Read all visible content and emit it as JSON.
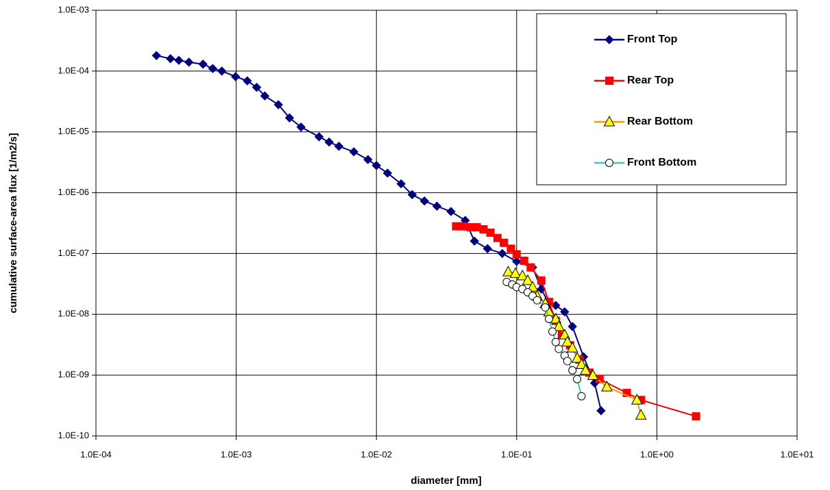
{
  "chart_data": {
    "type": "line",
    "xlabel": "diameter [mm]",
    "ylabel": "cumulative surface-area flux [1/m2/s]",
    "xscale": "log",
    "yscale": "log",
    "grid": true,
    "legend": "upper right",
    "xlim": [
      0.0001,
      10
    ],
    "xticks": [
      {
        "value": 0.0001,
        "label": "1.0E-04"
      },
      {
        "value": 0.001,
        "label": "1.0E-03"
      },
      {
        "value": 0.01,
        "label": "1.0E-02"
      },
      {
        "value": 0.1,
        "label": "1.0E-01"
      },
      {
        "value": 1,
        "label": "1.0E+00"
      },
      {
        "value": 10,
        "label": "1.0E+01"
      }
    ],
    "ylim": [
      1e-10,
      0.001
    ],
    "yticks": [
      {
        "value": 1e-10,
        "label": "1.0E-10"
      },
      {
        "value": 1e-09,
        "label": "1.0E-09"
      },
      {
        "value": 1e-08,
        "label": "1.0E-08"
      },
      {
        "value": 1e-07,
        "label": "1.0E-07"
      },
      {
        "value": 1e-06,
        "label": "1.0E-06"
      },
      {
        "value": 1e-05,
        "label": "1.0E-05"
      },
      {
        "value": 0.0001,
        "label": "1.0E-04"
      },
      {
        "value": 0.001,
        "label": "1.0E-03"
      }
    ],
    "series": [
      {
        "name": "Front Top",
        "color": "#000080",
        "marker": "diamond",
        "marker_color": "#000080",
        "x": [
          0.00027,
          0.00034,
          0.00039,
          0.00046,
          0.00058,
          0.00068,
          0.00079,
          0.00099,
          0.0012,
          0.0014,
          0.0016,
          0.002,
          0.0024,
          0.0029,
          0.0039,
          0.0046,
          0.0054,
          0.0069,
          0.0087,
          0.01,
          0.012,
          0.015,
          0.018,
          0.022,
          0.027,
          0.034,
          0.043,
          0.05,
          0.062,
          0.079,
          0.1,
          0.13,
          0.15,
          0.17,
          0.19,
          0.22,
          0.25,
          0.3,
          0.36,
          0.4
        ],
        "values": [
          0.00018,
          0.00016,
          0.00015,
          0.00014,
          0.00013,
          0.00011,
          0.0001,
          8.1e-05,
          6.9e-05,
          5.4e-05,
          3.9e-05,
          2.8e-05,
          1.7e-05,
          1.2e-05,
          8.3e-06,
          6.8e-06,
          5.8e-06,
          4.7e-06,
          3.5e-06,
          2.8e-06,
          2.1e-06,
          1.4e-06,
          9.3e-07,
          7.3e-07,
          6e-07,
          4.9e-07,
          3.5e-07,
          1.6e-07,
          1.2e-07,
          1e-07,
          7.4e-08,
          5.9e-08,
          2.6e-08,
          1.5e-08,
          1.4e-08,
          1.1e-08,
          6.3e-09,
          2e-09,
          7.4e-10,
          2.6e-10
        ]
      },
      {
        "name": "Rear Top",
        "color": "#ff0000",
        "marker": "square",
        "marker_color": "#ff0000",
        "x": [
          0.037,
          0.042,
          0.047,
          0.052,
          0.058,
          0.065,
          0.073,
          0.081,
          0.091,
          0.1,
          0.113,
          0.126,
          0.15,
          0.17,
          0.19,
          0.21,
          0.24,
          0.28,
          0.33,
          0.39,
          0.61,
          0.77,
          1.9
        ],
        "values": [
          2.8e-07,
          2.8e-07,
          2.7e-07,
          2.7e-07,
          2.5e-07,
          2.2e-07,
          1.8e-07,
          1.5e-07,
          1.2e-07,
          9.7e-08,
          7.6e-08,
          5.9e-08,
          3.6e-08,
          1.6e-08,
          7.8e-09,
          4.6e-09,
          3.1e-09,
          1.8e-09,
          1.1e-09,
          8.6e-10,
          5.1e-10,
          3.9e-10,
          2.1e-10
        ]
      },
      {
        "name": "Rear Bottom",
        "color": "#ff9900",
        "marker": "triangle",
        "marker_color": "#ffff00",
        "x": [
          0.087,
          0.098,
          0.11,
          0.12,
          0.13,
          0.14,
          0.16,
          0.17,
          0.19,
          0.2,
          0.22,
          0.23,
          0.25,
          0.27,
          0.29,
          0.31,
          0.35,
          0.44,
          0.72,
          0.77
        ],
        "values": [
          5e-08,
          4.7e-08,
          4.3e-08,
          3.6e-08,
          2.8e-08,
          2e-08,
          1.5e-08,
          1.1e-08,
          8.4e-09,
          6.3e-09,
          4.6e-09,
          3.5e-09,
          2.8e-09,
          1.9e-09,
          1.5e-09,
          1.2e-09,
          9.9e-10,
          6.4e-10,
          3.9e-10,
          2.2e-10
        ]
      },
      {
        "name": "Front Bottom",
        "color": "#33cccc",
        "marker": "circle",
        "marker_color": "#ffffff",
        "x": [
          0.085,
          0.093,
          0.1,
          0.11,
          0.12,
          0.13,
          0.14,
          0.16,
          0.17,
          0.18,
          0.19,
          0.2,
          0.22,
          0.23,
          0.25,
          0.27,
          0.29
        ],
        "values": [
          3.4e-08,
          3.1e-08,
          2.8e-08,
          2.6e-08,
          2.3e-08,
          2e-08,
          1.7e-08,
          1.3e-08,
          8.4e-09,
          5.2e-09,
          3.5e-09,
          2.7e-09,
          2.1e-09,
          1.7e-09,
          1.2e-09,
          8.6e-10,
          4.5e-10
        ]
      }
    ]
  }
}
